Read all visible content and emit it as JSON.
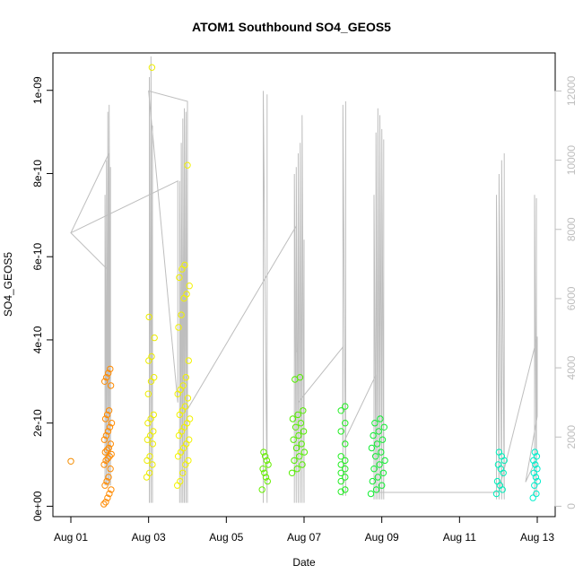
{
  "chart_data": {
    "type": "scatter",
    "title": "ATOM1 Southbound SO4_GEOS5",
    "xlabel": "Date",
    "ylabel": "SO4_GEOS5",
    "xlim": [
      0,
      12.5
    ],
    "ylim": [
      -2.5e-11,
      1.09e-09
    ],
    "x_ticks": [
      {
        "value": 0,
        "label": "Aug 01"
      },
      {
        "value": 2,
        "label": "Aug 03"
      },
      {
        "value": 4,
        "label": "Aug 05"
      },
      {
        "value": 6,
        "label": "Aug 07"
      },
      {
        "value": 8,
        "label": "Aug 09"
      },
      {
        "value": 10,
        "label": "Aug 11"
      },
      {
        "value": 12,
        "label": "Aug 13"
      }
    ],
    "y_ticks": [
      {
        "value": 0,
        "label": "0e+00"
      },
      {
        "value": 2e-10,
        "label": "2e-10"
      },
      {
        "value": 4e-10,
        "label": "4e-10"
      },
      {
        "value": 6e-10,
        "label": "6e-10"
      },
      {
        "value": 8e-10,
        "label": "8e-10"
      },
      {
        "value": 1e-09,
        "label": "1e-09"
      }
    ],
    "y2_ticks": [
      {
        "value": 0,
        "label": "0"
      },
      {
        "value": 2000,
        "label": "2000"
      },
      {
        "value": 4000,
        "label": "4000"
      },
      {
        "value": 6000,
        "label": "6000"
      },
      {
        "value": 8000,
        "label": "8000"
      },
      {
        "value": 10000,
        "label": "10000"
      },
      {
        "value": 12000,
        "label": "12000"
      }
    ],
    "y2lim": [
      -300,
      13100
    ],
    "altitude_color": "#bebebe",
    "groups": [
      {
        "x": 0.0,
        "x_spread": 0.0,
        "color": "#f48c00",
        "values_e10": [
          1.08
        ]
      },
      {
        "x": 0.95,
        "x_spread": 0.1,
        "color": "#ff8a00",
        "values_e10": [
          0.05,
          0.1,
          0.2,
          0.3,
          0.4,
          0.5,
          0.6,
          0.7,
          0.9,
          1.0,
          1.1,
          1.15,
          1.2,
          1.25,
          1.3,
          1.35,
          1.4,
          1.5,
          1.6,
          1.7,
          1.8,
          1.9,
          2.0,
          2.1,
          2.2,
          2.3,
          2.9,
          3.0,
          3.1,
          3.2,
          3.3
        ]
      },
      {
        "x": 2.05,
        "x_spread": 0.1,
        "color": "#ecec00",
        "values_e10": [
          0.7,
          0.8,
          1.0,
          1.1,
          1.2,
          1.5,
          1.6,
          1.7,
          1.8,
          2.0,
          2.1,
          2.2,
          2.7,
          3.0,
          3.1,
          3.5,
          3.6,
          4.05,
          4.55,
          10.55
        ]
      },
      {
        "x": 2.9,
        "x_spread": 0.16,
        "color": "#f2f200",
        "values_e10": [
          0.5,
          0.6,
          0.8,
          1.0,
          1.1,
          1.2,
          1.3,
          1.4,
          1.5,
          1.6,
          1.7,
          1.8,
          1.9,
          2.0,
          2.1,
          2.2,
          2.3,
          2.4,
          2.6,
          2.7,
          2.8,
          2.9,
          3.1,
          3.5,
          4.3,
          4.6,
          5.0,
          5.1,
          5.3,
          5.5,
          5.7,
          5.8,
          8.2
        ]
      },
      {
        "x": 5.0,
        "x_spread": 0.08,
        "color": "#66ee00",
        "values_e10": [
          0.4,
          0.6,
          0.7,
          0.8,
          0.9,
          1.0,
          1.1,
          1.2,
          1.3
        ]
      },
      {
        "x": 5.85,
        "x_spread": 0.16,
        "color": "#55ee00",
        "values_e10": [
          0.8,
          0.9,
          1.0,
          1.1,
          1.2,
          1.3,
          1.4,
          1.5,
          1.6,
          1.7,
          1.8,
          1.9,
          2.0,
          2.1,
          2.2,
          2.3,
          3.05,
          3.1
        ]
      },
      {
        "x": 7.05,
        "x_spread": 0.1,
        "color": "#22ee22",
        "values_e10": [
          0.35,
          0.4,
          0.6,
          0.7,
          0.8,
          0.9,
          1.0,
          1.1,
          1.2,
          1.5,
          1.8,
          2.0,
          2.3,
          2.4
        ]
      },
      {
        "x": 7.9,
        "x_spread": 0.18,
        "color": "#11ee33",
        "values_e10": [
          0.3,
          0.4,
          0.5,
          0.6,
          0.7,
          0.8,
          0.9,
          1.0,
          1.1,
          1.2,
          1.3,
          1.4,
          1.5,
          1.6,
          1.7,
          1.8,
          1.9,
          2.0,
          2.1
        ]
      },
      {
        "x": 11.05,
        "x_spread": 0.1,
        "color": "#00eebb",
        "values_e10": [
          0.3,
          0.4,
          0.5,
          0.6,
          0.8,
          0.9,
          1.0,
          1.1,
          1.2,
          1.3
        ]
      },
      {
        "x": 11.95,
        "x_spread": 0.06,
        "color": "#00eecc",
        "values_e10": [
          0.2,
          0.3,
          0.5,
          0.6,
          0.7,
          0.8,
          0.9,
          1.0,
          1.1,
          1.2,
          1.3
        ]
      }
    ],
    "altitude_bursts": [
      {
        "x0": 0.88,
        "x1": 1.02,
        "peaks": [
          9.0,
          10.0,
          11.4,
          11.6,
          9.8
        ],
        "floor": 600
      },
      {
        "x0": 2.02,
        "x1": 2.1,
        "peaks": [
          12.4,
          13.0,
          11.0
        ],
        "floor": 100
      },
      {
        "x0": 2.8,
        "x1": 3.0,
        "peaks": [
          9.4,
          10.5,
          11.2,
          11.5,
          11.4,
          11.2
        ],
        "floor": 100
      },
      {
        "x0": 4.95,
        "x1": 5.05,
        "peaks": [
          12.0,
          11.9
        ],
        "floor": 100
      },
      {
        "x0": 5.75,
        "x1": 6.0,
        "peaks": [
          9.6,
          9.8,
          10.2,
          10.5,
          11.3,
          7.7
        ],
        "floor": 100
      },
      {
        "x0": 7.0,
        "x1": 7.07,
        "peaks": [
          11.6,
          11.7
        ],
        "floor": 300
      },
      {
        "x0": 7.8,
        "x1": 8.05,
        "peaks": [
          9.0,
          10.8,
          11.5,
          11.3,
          10.9,
          10.6
        ],
        "floor": 200
      },
      {
        "x0": 10.95,
        "x1": 11.15,
        "peaks": [
          9.0,
          9.6,
          10.0,
          10.2
        ],
        "floor": 200
      },
      {
        "x0": 11.93,
        "x1": 11.98,
        "peaks": [
          9.0,
          8.9
        ],
        "floor": 300
      }
    ],
    "altitude_path": [
      [
        0.0,
        7900
      ],
      [
        0.98,
        10200
      ],
      [
        0.98,
        6800
      ],
      [
        0.0,
        7900
      ],
      [
        2.75,
        9400
      ],
      [
        2.75,
        3000
      ],
      [
        2.0,
        12000
      ],
      [
        3.0,
        11700
      ],
      [
        3.0,
        2800
      ],
      [
        5.8,
        8100
      ],
      [
        5.8,
        4500
      ],
      [
        5.85,
        4400
      ],
      [
        5.85,
        3000
      ],
      [
        7.0,
        4600
      ],
      [
        7.0,
        1800
      ],
      [
        7.85,
        3800
      ],
      [
        7.85,
        400
      ],
      [
        11.0,
        400
      ],
      [
        12.0,
        4900
      ],
      [
        12.0,
        2600
      ],
      [
        11.7,
        700
      ],
      [
        11.95,
        1300
      ]
    ]
  }
}
